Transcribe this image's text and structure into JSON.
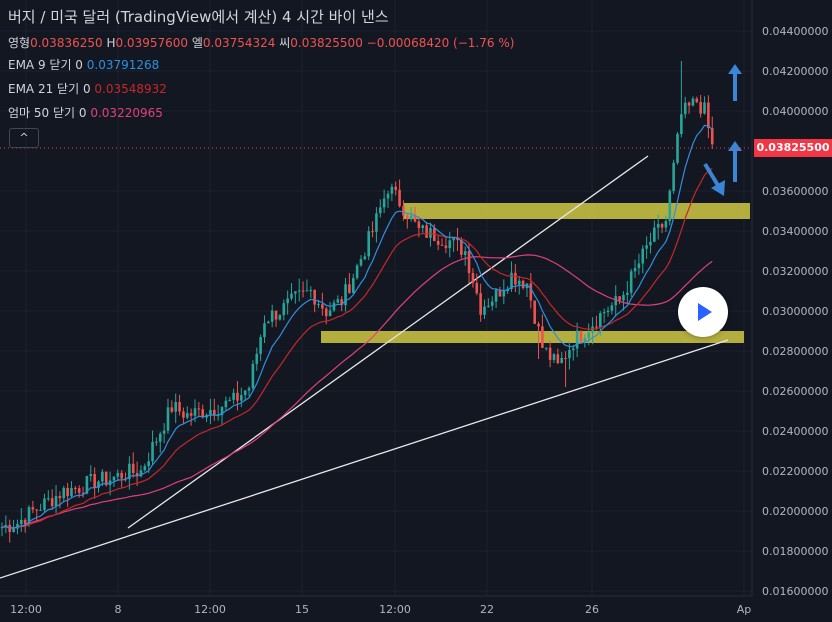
{
  "header": {
    "title": "버지 / 미국 달러 (TradingView에서 계산)  4 시간  바이 낸스",
    "ohlc": {
      "open_label": "영형",
      "open": "0.03836250",
      "high_label": "H",
      "high": "0.03957600",
      "low_label": "엘",
      "low": "0.03754324",
      "close_label": "씨",
      "close": "0.03825500",
      "change": "−0.00068420 (−1.76 %)"
    },
    "indicators": [
      {
        "label": "EMA 9 닫기 0",
        "value": "0.03791268",
        "color": "#2f8fdf"
      },
      {
        "label": "EMA 21 닫기 0",
        "value": "0.03548932",
        "color": "#c62828"
      },
      {
        "label": "엄마 50 닫기 0",
        "value": "0.03220965",
        "color": "#e0407a"
      }
    ],
    "collapse_glyph": "^"
  },
  "current_price": "0.03825500",
  "colors": {
    "up": "#26a69a",
    "down": "#ef5350",
    "zone": "#d8cf45",
    "arrow": "#3c84d6"
  },
  "chart_data": {
    "type": "candlestick",
    "y_axis": {
      "ticks": [
        "0.04400000",
        "0.04200000",
        "0.04000000",
        "0.03600000",
        "0.03400000",
        "0.03200000",
        "0.03000000",
        "0.02800000",
        "0.02600000",
        "0.02400000",
        "0.02200000",
        "0.02000000",
        "0.01800000",
        "0.01600000"
      ],
      "range": [
        0.0158,
        0.0446
      ]
    },
    "x_axis": {
      "ticks": [
        "12:00",
        "8",
        "12:00",
        "15",
        "12:00",
        "22",
        "26",
        "Ap"
      ]
    },
    "support_zone": [
      0.0284,
      0.029
    ],
    "resistance_zone": [
      0.0346,
      0.0354
    ],
    "close_profile": [
      [
        0,
        0.0192
      ],
      [
        4,
        0.0194
      ],
      [
        8,
        0.02
      ],
      [
        12,
        0.0205
      ],
      [
        16,
        0.021
      ],
      [
        20,
        0.0212
      ],
      [
        24,
        0.0215
      ],
      [
        28,
        0.0216
      ],
      [
        32,
        0.0219
      ],
      [
        36,
        0.022
      ],
      [
        40,
        0.0236
      ],
      [
        44,
        0.0252
      ],
      [
        48,
        0.0248
      ],
      [
        52,
        0.025
      ],
      [
        56,
        0.0252
      ],
      [
        60,
        0.0255
      ],
      [
        64,
        0.0262
      ],
      [
        68,
        0.0296
      ],
      [
        72,
        0.03
      ],
      [
        76,
        0.0306
      ],
      [
        80,
        0.031
      ],
      [
        84,
        0.03
      ],
      [
        88,
        0.0305
      ],
      [
        92,
        0.0322
      ],
      [
        96,
        0.034
      ],
      [
        100,
        0.0362
      ],
      [
        104,
        0.0352
      ],
      [
        108,
        0.034
      ],
      [
        112,
        0.0338
      ],
      [
        116,
        0.0335
      ],
      [
        120,
        0.033
      ],
      [
        124,
        0.0302
      ],
      [
        128,
        0.0308
      ],
      [
        132,
        0.0318
      ],
      [
        136,
        0.0314
      ],
      [
        140,
        0.0282
      ],
      [
        144,
        0.0272
      ],
      [
        148,
        0.0285
      ],
      [
        152,
        0.0292
      ],
      [
        156,
        0.03
      ],
      [
        160,
        0.0305
      ],
      [
        164,
        0.032
      ],
      [
        168,
        0.0335
      ],
      [
        172,
        0.0345
      ],
      [
        176,
        0.0398
      ],
      [
        180,
        0.0405
      ],
      [
        182,
        0.04
      ],
      [
        184,
        0.0382
      ]
    ],
    "spikes": [
      [
        176,
        0.0425
      ],
      [
        139,
        0.0276
      ],
      [
        146,
        0.0262
      ]
    ]
  }
}
